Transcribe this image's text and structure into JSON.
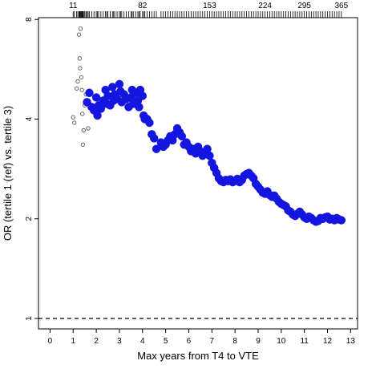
{
  "chart_data": {
    "type": "scatter",
    "xlabel": "Max years from T4 to VTE",
    "ylabel": "OR (tertile 1 (ref) vs. tertile 3)",
    "x_ticks": [
      0,
      1,
      2,
      3,
      4,
      5,
      6,
      7,
      8,
      9,
      10,
      11,
      12,
      13
    ],
    "xlim": [
      -0.5,
      13.3
    ],
    "y_scale": "log",
    "y_ticks": [
      1,
      2,
      4,
      8
    ],
    "ylim": [
      0.93,
      8.1
    ],
    "top_axis_labels": [
      {
        "x": 1.0,
        "label": "11"
      },
      {
        "x": 4.0,
        "label": "82"
      },
      {
        "x": 6.9,
        "label": "153"
      },
      {
        "x": 9.3,
        "label": "224"
      },
      {
        "x": 11.0,
        "label": "295"
      },
      {
        "x": 12.6,
        "label": "365"
      }
    ],
    "reference_line": {
      "y": 1,
      "style": "dashed"
    },
    "grid": false,
    "series": [
      {
        "marker": "open-circle",
        "color": "#555555",
        "points": [
          {
            "x": 1.0,
            "y": 4.05
          },
          {
            "x": 1.05,
            "y": 3.9
          },
          {
            "x": 1.15,
            "y": 4.95
          },
          {
            "x": 1.2,
            "y": 5.2
          },
          {
            "x": 1.25,
            "y": 7.2
          },
          {
            "x": 1.28,
            "y": 6.1
          },
          {
            "x": 1.3,
            "y": 5.7
          },
          {
            "x": 1.32,
            "y": 7.5
          },
          {
            "x": 1.35,
            "y": 5.35
          },
          {
            "x": 1.38,
            "y": 4.9
          },
          {
            "x": 1.4,
            "y": 4.15
          },
          {
            "x": 1.42,
            "y": 3.35
          },
          {
            "x": 1.45,
            "y": 3.7
          },
          {
            "x": 1.5,
            "y": 4.4
          },
          {
            "x": 1.55,
            "y": 4.75
          },
          {
            "x": 1.6,
            "y": 4.55
          },
          {
            "x": 1.65,
            "y": 3.75
          }
        ]
      },
      {
        "marker": "filled-circle",
        "color": "#1515e0",
        "points": [
          {
            "x": 1.6,
            "y": 4.5
          },
          {
            "x": 1.7,
            "y": 4.8
          },
          {
            "x": 1.8,
            "y": 4.35
          },
          {
            "x": 1.9,
            "y": 4.25
          },
          {
            "x": 2.0,
            "y": 4.65
          },
          {
            "x": 2.05,
            "y": 4.1
          },
          {
            "x": 2.1,
            "y": 4.4
          },
          {
            "x": 2.2,
            "y": 4.3
          },
          {
            "x": 2.3,
            "y": 4.55
          },
          {
            "x": 2.4,
            "y": 4.9
          },
          {
            "x": 2.45,
            "y": 4.45
          },
          {
            "x": 2.5,
            "y": 4.7
          },
          {
            "x": 2.6,
            "y": 4.4
          },
          {
            "x": 2.7,
            "y": 5.0
          },
          {
            "x": 2.75,
            "y": 4.55
          },
          {
            "x": 2.8,
            "y": 4.75
          },
          {
            "x": 2.9,
            "y": 4.6
          },
          {
            "x": 3.0,
            "y": 5.1
          },
          {
            "x": 3.05,
            "y": 4.85
          },
          {
            "x": 3.1,
            "y": 4.5
          },
          {
            "x": 3.2,
            "y": 4.75
          },
          {
            "x": 3.3,
            "y": 4.6
          },
          {
            "x": 3.4,
            "y": 4.35
          },
          {
            "x": 3.5,
            "y": 4.65
          },
          {
            "x": 3.55,
            "y": 4.9
          },
          {
            "x": 3.6,
            "y": 4.45
          },
          {
            "x": 3.7,
            "y": 4.8
          },
          {
            "x": 3.8,
            "y": 4.55
          },
          {
            "x": 3.85,
            "y": 4.35
          },
          {
            "x": 3.9,
            "y": 4.9
          },
          {
            "x": 4.0,
            "y": 4.7
          },
          {
            "x": 4.05,
            "y": 4.1
          },
          {
            "x": 4.1,
            "y": 4.0
          },
          {
            "x": 4.2,
            "y": 4.0
          },
          {
            "x": 4.3,
            "y": 3.9
          },
          {
            "x": 4.4,
            "y": 3.6
          },
          {
            "x": 4.5,
            "y": 3.5
          },
          {
            "x": 4.6,
            "y": 3.25
          },
          {
            "x": 4.8,
            "y": 3.4
          },
          {
            "x": 4.9,
            "y": 3.3
          },
          {
            "x": 5.0,
            "y": 3.35
          },
          {
            "x": 5.1,
            "y": 3.45
          },
          {
            "x": 5.2,
            "y": 3.55
          },
          {
            "x": 5.3,
            "y": 3.45
          },
          {
            "x": 5.4,
            "y": 3.6
          },
          {
            "x": 5.5,
            "y": 3.75
          },
          {
            "x": 5.6,
            "y": 3.65
          },
          {
            "x": 5.7,
            "y": 3.55
          },
          {
            "x": 5.8,
            "y": 3.35
          },
          {
            "x": 5.9,
            "y": 3.4
          },
          {
            "x": 6.0,
            "y": 3.3
          },
          {
            "x": 6.1,
            "y": 3.2
          },
          {
            "x": 6.2,
            "y": 3.25
          },
          {
            "x": 6.3,
            "y": 3.15
          },
          {
            "x": 6.4,
            "y": 3.3
          },
          {
            "x": 6.5,
            "y": 3.2
          },
          {
            "x": 6.6,
            "y": 3.1
          },
          {
            "x": 6.7,
            "y": 3.15
          },
          {
            "x": 6.8,
            "y": 3.25
          },
          {
            "x": 6.9,
            "y": 3.1
          },
          {
            "x": 7.0,
            "y": 2.95
          },
          {
            "x": 7.1,
            "y": 2.85
          },
          {
            "x": 7.2,
            "y": 2.75
          },
          {
            "x": 7.3,
            "y": 2.65
          },
          {
            "x": 7.4,
            "y": 2.6
          },
          {
            "x": 7.5,
            "y": 2.58
          },
          {
            "x": 7.6,
            "y": 2.62
          },
          {
            "x": 7.7,
            "y": 2.6
          },
          {
            "x": 7.8,
            "y": 2.63
          },
          {
            "x": 7.9,
            "y": 2.58
          },
          {
            "x": 8.0,
            "y": 2.6
          },
          {
            "x": 8.1,
            "y": 2.64
          },
          {
            "x": 8.2,
            "y": 2.58
          },
          {
            "x": 8.3,
            "y": 2.62
          },
          {
            "x": 8.4,
            "y": 2.7
          },
          {
            "x": 8.5,
            "y": 2.73
          },
          {
            "x": 8.6,
            "y": 2.75
          },
          {
            "x": 8.7,
            "y": 2.7
          },
          {
            "x": 8.8,
            "y": 2.65
          },
          {
            "x": 8.9,
            "y": 2.55
          },
          {
            "x": 9.0,
            "y": 2.5
          },
          {
            "x": 9.1,
            "y": 2.45
          },
          {
            "x": 9.2,
            "y": 2.4
          },
          {
            "x": 9.3,
            "y": 2.38
          },
          {
            "x": 9.4,
            "y": 2.42
          },
          {
            "x": 9.5,
            "y": 2.36
          },
          {
            "x": 9.6,
            "y": 2.33
          },
          {
            "x": 9.7,
            "y": 2.35
          },
          {
            "x": 9.8,
            "y": 2.3
          },
          {
            "x": 9.9,
            "y": 2.25
          },
          {
            "x": 10.0,
            "y": 2.22
          },
          {
            "x": 10.1,
            "y": 2.2
          },
          {
            "x": 10.2,
            "y": 2.18
          },
          {
            "x": 10.3,
            "y": 2.12
          },
          {
            "x": 10.4,
            "y": 2.1
          },
          {
            "x": 10.5,
            "y": 2.06
          },
          {
            "x": 10.6,
            "y": 2.04
          },
          {
            "x": 10.7,
            "y": 2.07
          },
          {
            "x": 10.8,
            "y": 2.1
          },
          {
            "x": 10.9,
            "y": 2.06
          },
          {
            "x": 11.0,
            "y": 2.02
          },
          {
            "x": 11.1,
            "y": 2.0
          },
          {
            "x": 11.2,
            "y": 2.03
          },
          {
            "x": 11.3,
            "y": 2.01
          },
          {
            "x": 11.4,
            "y": 1.98
          },
          {
            "x": 11.5,
            "y": 1.96
          },
          {
            "x": 11.6,
            "y": 1.97
          },
          {
            "x": 11.7,
            "y": 2.01
          },
          {
            "x": 11.8,
            "y": 2.0
          },
          {
            "x": 11.9,
            "y": 2.02
          },
          {
            "x": 12.0,
            "y": 2.03
          },
          {
            "x": 12.1,
            "y": 1.99
          },
          {
            "x": 12.2,
            "y": 2.0
          },
          {
            "x": 12.3,
            "y": 1.98
          },
          {
            "x": 12.4,
            "y": 2.01
          },
          {
            "x": 12.5,
            "y": 1.99
          },
          {
            "x": 12.6,
            "y": 1.98
          }
        ]
      }
    ]
  }
}
